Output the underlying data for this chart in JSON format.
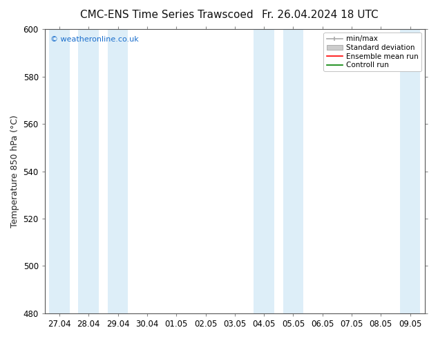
{
  "title_left": "CMC-ENS Time Series Trawscoed",
  "title_right": "Fr. 26.04.2024 18 UTC",
  "ylabel": "Temperature 850 hPa (°C)",
  "ylim": [
    480,
    600
  ],
  "yticks": [
    480,
    500,
    520,
    540,
    560,
    580,
    600
  ],
  "xtick_labels": [
    "27.04",
    "28.04",
    "29.04",
    "30.04",
    "01.05",
    "02.05",
    "03.05",
    "04.05",
    "05.05",
    "06.05",
    "07.05",
    "08.05",
    "09.05"
  ],
  "watermark": "© weatheronline.co.uk",
  "watermark_color": "#1a6ecc",
  "bg_color": "#ffffff",
  "plot_bg_color": "#ffffff",
  "shaded_band_color": "#ddeef8",
  "shaded_columns": [
    0,
    1,
    2,
    7,
    8,
    12
  ],
  "legend_labels": [
    "min/max",
    "Standard deviation",
    "Ensemble mean run",
    "Controll run"
  ],
  "legend_minmax_color": "#aaaaaa",
  "legend_std_color": "#cccccc",
  "legend_ens_color": "#ff0000",
  "legend_ctrl_color": "#008000",
  "title_fontsize": 11,
  "tick_fontsize": 8.5,
  "label_fontsize": 9
}
